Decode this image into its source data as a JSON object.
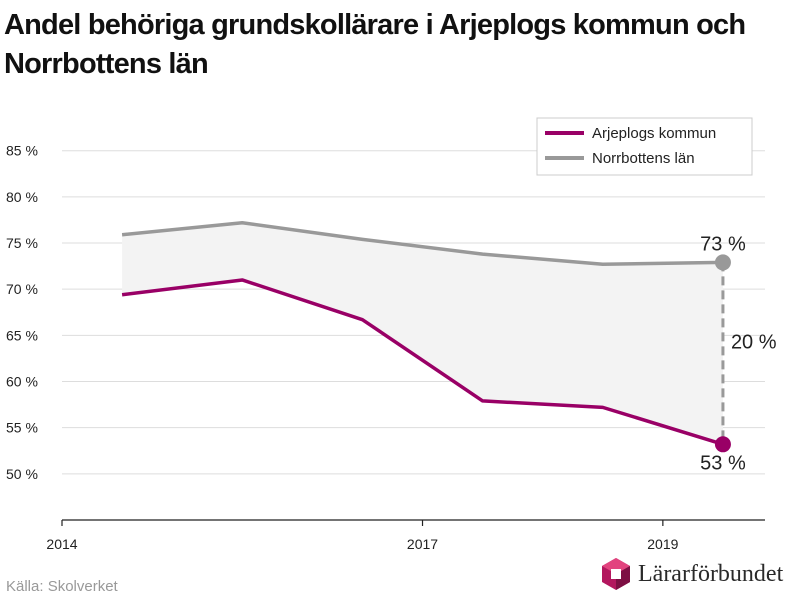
{
  "title": "Andel behöriga grundskollärare i Arjeplogs kommun och Norrbottens län",
  "source": "Källa: Skolverket",
  "logo_text": "Lärarförbundet",
  "colors": {
    "arjeplog": "#990066",
    "norrbotten": "#999999",
    "grid": "#dddddd",
    "fill": "#f3f3f3",
    "logo": "#b3175e"
  },
  "chart_data": {
    "type": "line",
    "ylim": [
      45,
      88
    ],
    "xlim": [
      2014,
      2019.85
    ],
    "yticks": [
      50,
      55,
      60,
      65,
      70,
      75,
      80,
      85
    ],
    "ytick_labels": [
      "50 %",
      "55 %",
      "60 %",
      "65 %",
      "70 %",
      "75 %",
      "80 %",
      "85 %"
    ],
    "xticks": [
      2014,
      2017,
      2019
    ],
    "xtick_labels": [
      "2014",
      "2017",
      "2019"
    ],
    "x": [
      2014.5,
      2015.5,
      2016.5,
      2017.5,
      2018.5,
      2019.5
    ],
    "series": [
      {
        "name": "Arjeplogs kommun",
        "values": [
          69.4,
          71.0,
          66.7,
          57.9,
          57.2,
          53.2
        ]
      },
      {
        "name": "Norrbottens län",
        "values": [
          75.9,
          77.2,
          75.4,
          73.8,
          72.7,
          72.9
        ]
      }
    ],
    "legend_position": "top-right",
    "annotations": {
      "last_top": "73 %",
      "last_bottom": "53 %",
      "difference": "20 %"
    }
  }
}
